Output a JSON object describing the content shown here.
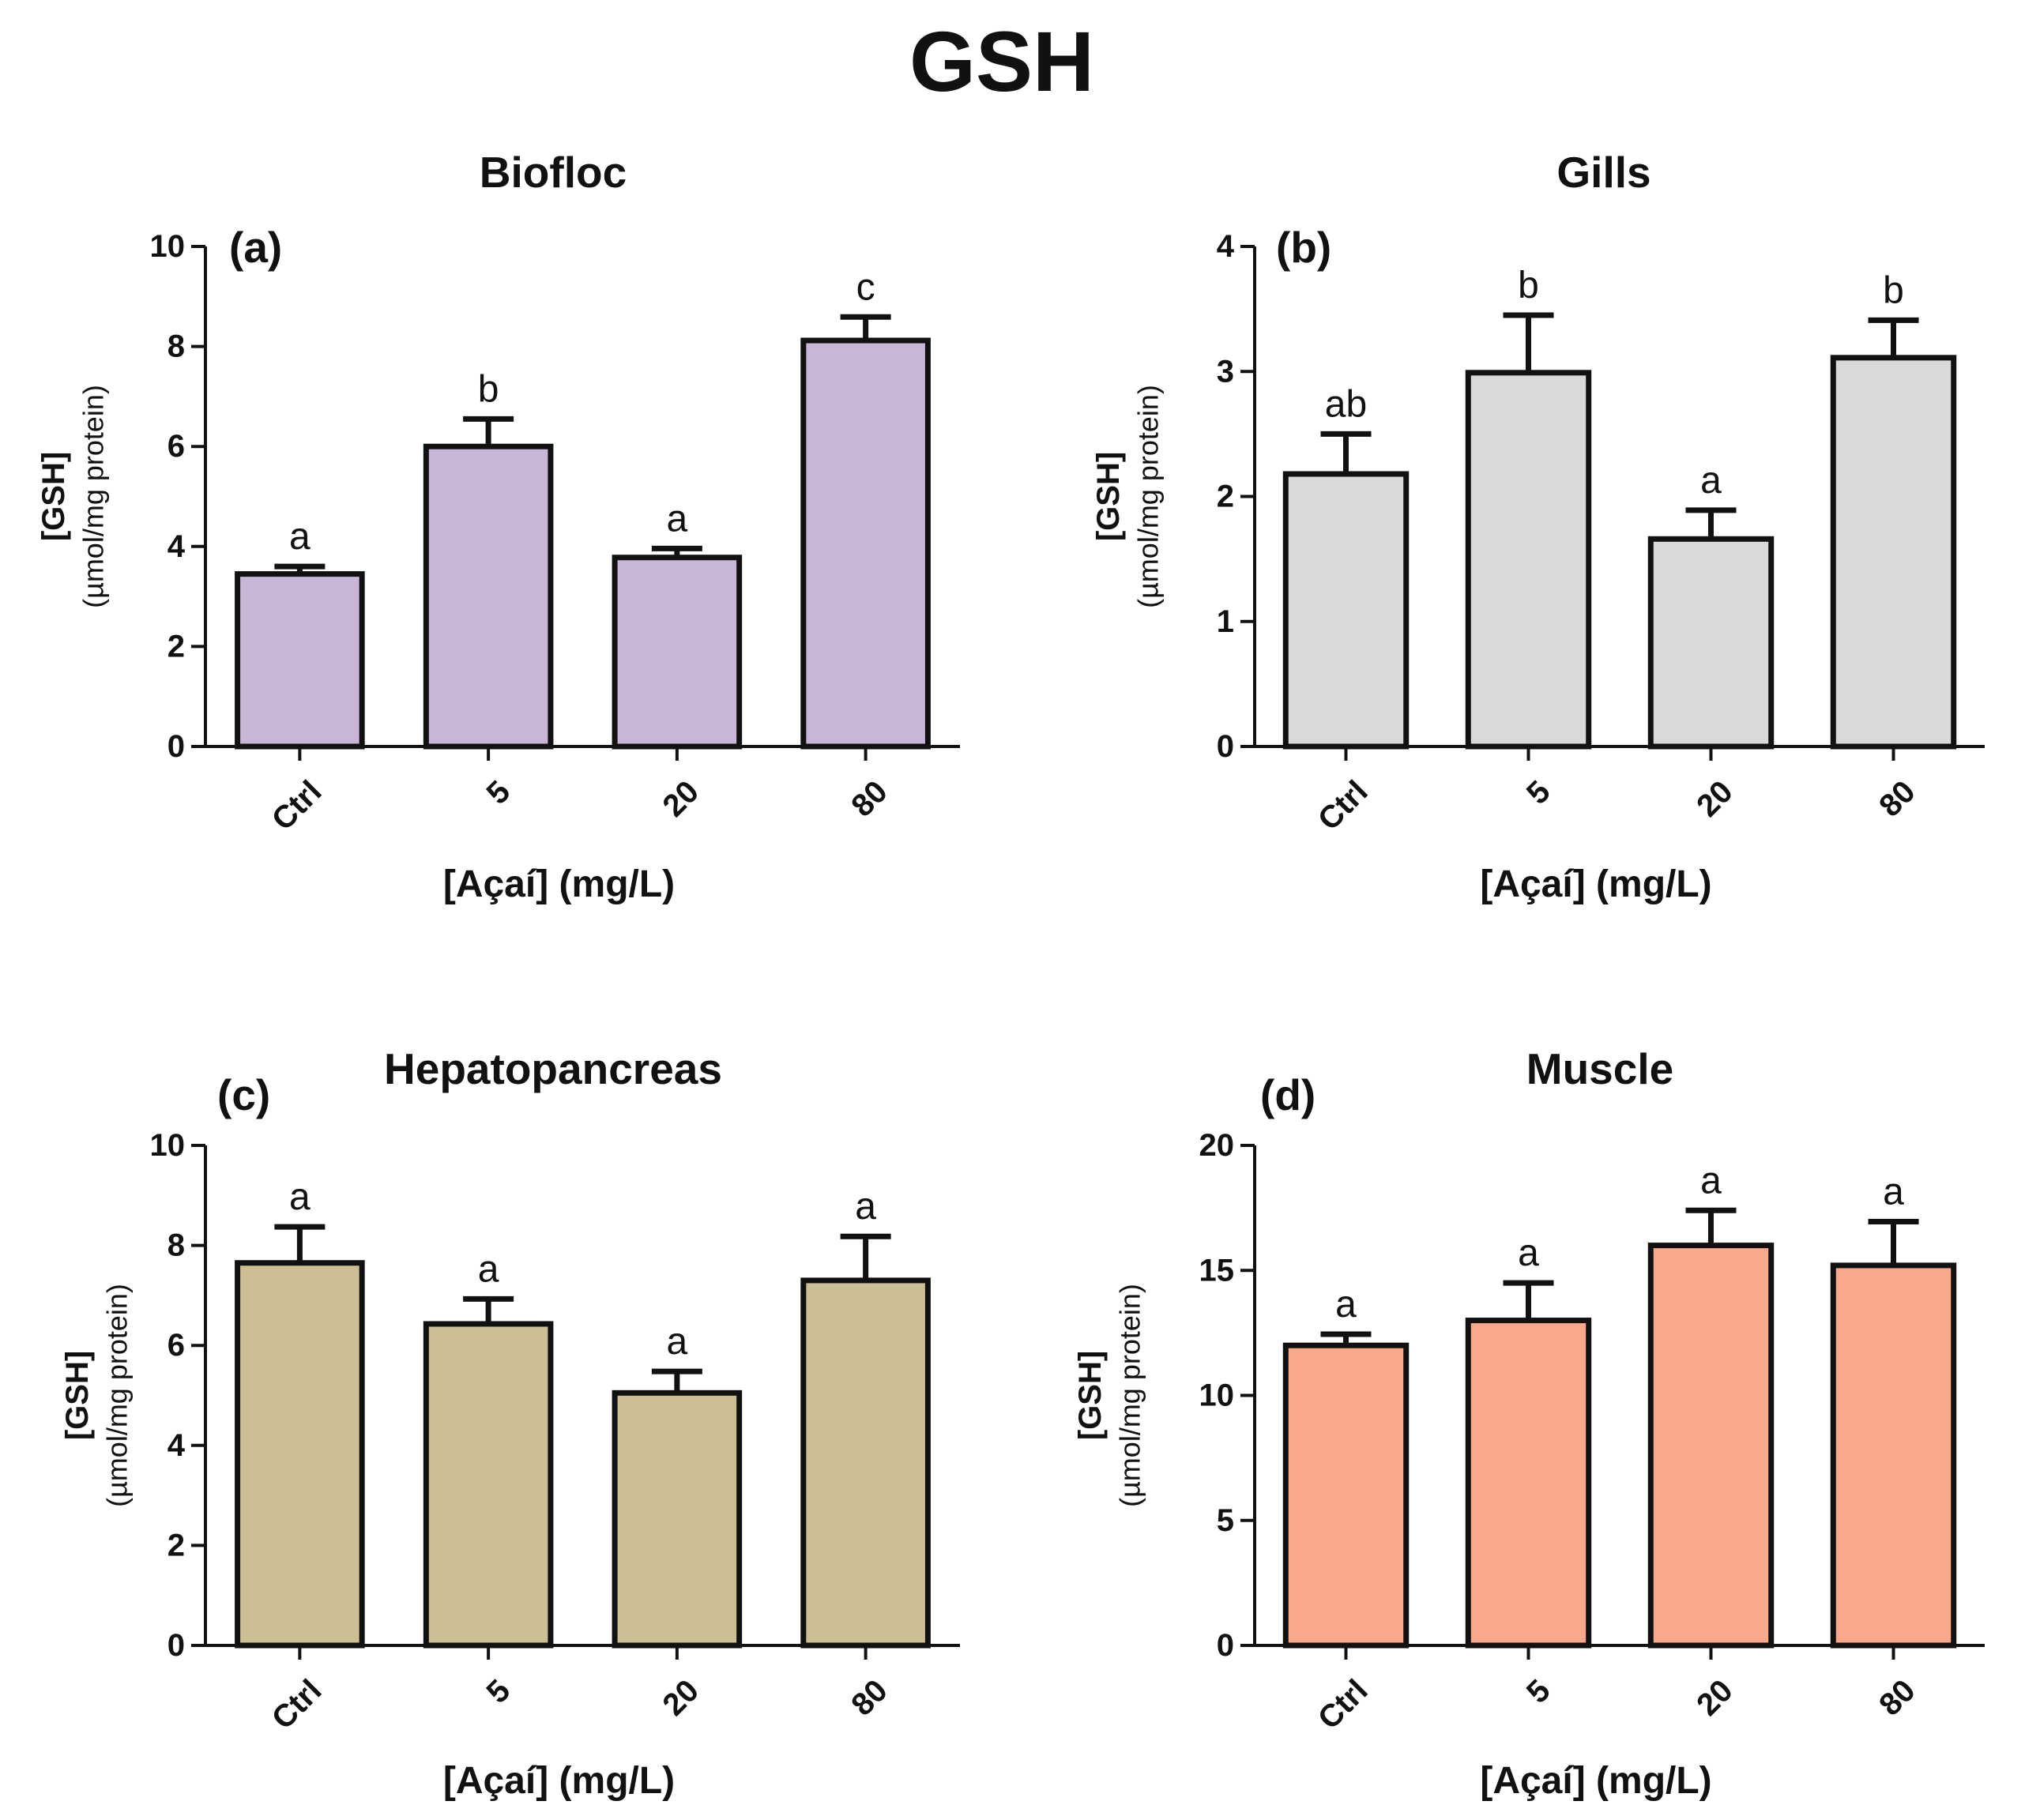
{
  "figure_title": "GSH",
  "chart_data": [
    {
      "type": "bar",
      "panel_label": "(a)",
      "title": "Biofloc",
      "categories": [
        "Ctrl",
        "5",
        "20",
        "80"
      ],
      "values": [
        3.45,
        6.0,
        3.78,
        8.12
      ],
      "errors": [
        0.15,
        0.55,
        0.18,
        0.47
      ],
      "significance": [
        "a",
        "b",
        "a",
        "c"
      ],
      "bar_color": "#c9b6d7",
      "ylim": [
        0,
        10
      ],
      "yticks": [
        "0",
        "2",
        "4",
        "6",
        "8",
        "10"
      ],
      "xlabel": "[Açaí] (mg/L)",
      "ylabel": "[GSH]",
      "ylabel_unit": "(µmol/mg protein)"
    },
    {
      "type": "bar",
      "panel_label": "(b)",
      "title": "Gills",
      "categories": [
        "Ctrl",
        "5",
        "20",
        "80"
      ],
      "values": [
        2.18,
        2.99,
        1.66,
        3.11
      ],
      "errors": [
        0.32,
        0.46,
        0.23,
        0.3
      ],
      "significance": [
        "ab",
        "b",
        "a",
        "b"
      ],
      "bar_color": "#d9d9d9",
      "ylim": [
        0,
        4
      ],
      "yticks": [
        "0",
        "1",
        "2",
        "3",
        "4"
      ],
      "xlabel": "[Açaí] (mg/L)",
      "ylabel": "[GSH]",
      "ylabel_unit": "(µmol/mg protein)"
    },
    {
      "type": "bar",
      "panel_label": "(c)",
      "title": "Hepatopancreas",
      "categories": [
        "Ctrl",
        "5",
        "20",
        "80"
      ],
      "values": [
        7.65,
        6.43,
        5.05,
        7.3
      ],
      "errors": [
        0.72,
        0.5,
        0.43,
        0.88
      ],
      "significance": [
        "a",
        "a",
        "a",
        "a"
      ],
      "bar_color": "#cdbf95",
      "ylim": [
        0,
        10
      ],
      "yticks": [
        "0",
        "2",
        "4",
        "6",
        "8",
        "10"
      ],
      "xlabel": "[Açaí] (mg/L)",
      "ylabel": "[GSH]",
      "ylabel_unit": "(µmol/mg protein)"
    },
    {
      "type": "bar",
      "panel_label": "(d)",
      "title": "Muscle",
      "categories": [
        "Ctrl",
        "5",
        "20",
        "80"
      ],
      "values": [
        12.0,
        13.0,
        16.0,
        15.2
      ],
      "errors": [
        0.45,
        1.5,
        1.4,
        1.75
      ],
      "significance": [
        "a",
        "a",
        "a",
        "a"
      ],
      "bar_color": "#f9a98b",
      "ylim": [
        0,
        20
      ],
      "yticks": [
        "0",
        "5",
        "10",
        "15",
        "20"
      ],
      "xlabel": "[Açaí] (mg/L)",
      "ylabel": "[GSH]",
      "ylabel_unit": "(µmol/mg protein)"
    }
  ]
}
